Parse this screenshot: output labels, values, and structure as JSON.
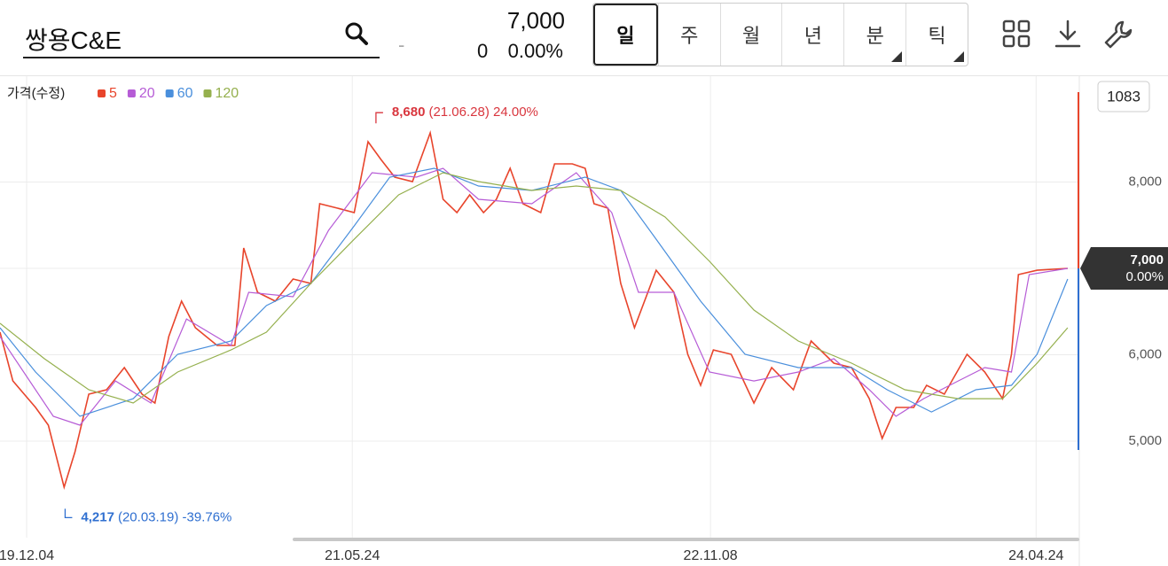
{
  "header": {
    "search": "쌍용C&E",
    "dash": "-",
    "price": "7,000",
    "change": "0",
    "change_rate": "0.00%",
    "tabs": [
      "일",
      "주",
      "월",
      "년",
      "분",
      "틱"
    ]
  },
  "chart_data": {
    "type": "line",
    "legend_title": "가격(수정)",
    "candle_count": "1083",
    "series": [
      {
        "name": "5",
        "color": "#e8452c",
        "x": [
          0,
          13,
          36,
          49,
          65,
          76,
          90,
          108,
          126,
          144,
          157,
          171,
          184,
          198,
          220,
          238,
          247,
          261,
          279,
          297,
          315,
          324,
          342,
          359,
          373,
          386,
          400,
          418,
          436,
          449,
          463,
          476,
          490,
          503,
          517,
          530,
          548,
          562,
          580,
          593,
          602,
          616,
          629,
          643,
          665,
          683,
          697,
          710,
          723,
          741,
          764,
          782,
          804,
          822,
          845,
          863,
          881,
          894,
          908,
          926,
          939,
          957,
          980,
          998,
          1016,
          1025,
          1032,
          1051,
          1082
        ],
        "values": [
          6262,
          5698,
          5390,
          5185,
          4467,
          4877,
          5544,
          5595,
          5851,
          5544,
          5441,
          6210,
          6621,
          6313,
          6108,
          6108,
          7236,
          6723,
          6621,
          6877,
          6826,
          7749,
          7697,
          7646,
          8467,
          8262,
          8056,
          8005,
          8569,
          7800,
          7646,
          7851,
          7646,
          7800,
          8159,
          7749,
          7646,
          8210,
          8210,
          8159,
          7749,
          7697,
          6826,
          6313,
          6979,
          6723,
          6005,
          5646,
          6056,
          6005,
          5441,
          5851,
          5595,
          6159,
          5903,
          5851,
          5492,
          5031,
          5390,
          5390,
          5646,
          5544,
          6005,
          5800,
          5492,
          6005,
          6928,
          6979,
          7000
        ]
      },
      {
        "name": "20",
        "color": "#b65cd6",
        "x": [
          0,
          54,
          81,
          117,
          153,
          189,
          234,
          252,
          297,
          333,
          377,
          422,
          449,
          485,
          539,
          584,
          620,
          647,
          683,
          719,
          764,
          809,
          845,
          881,
          908,
          936,
          971,
          998,
          1025,
          1043,
          1082
        ],
        "values": [
          6210,
          5287,
          5185,
          5697,
          5441,
          6415,
          6108,
          6723,
          6672,
          7441,
          8108,
          8056,
          8159,
          7800,
          7749,
          8108,
          7646,
          6723,
          6723,
          5800,
          5697,
          5800,
          5954,
          5595,
          5287,
          5492,
          5697,
          5851,
          5800,
          6928,
          7000
        ]
      },
      {
        "name": "60",
        "color": "#4a8fdc",
        "x": [
          0,
          36,
          81,
          135,
          180,
          234,
          270,
          315,
          359,
          395,
          440,
          485,
          539,
          593,
          629,
          665,
          710,
          755,
          809,
          863,
          899,
          944,
          989,
          1025,
          1051,
          1082
        ],
        "values": [
          6313,
          5800,
          5287,
          5492,
          6005,
          6159,
          6569,
          6826,
          7492,
          8056,
          8159,
          7954,
          7903,
          8056,
          7903,
          7338,
          6621,
          6005,
          5851,
          5851,
          5595,
          5338,
          5595,
          5646,
          6005,
          6877
        ]
      },
      {
        "name": "120",
        "color": "#95b04e",
        "x": [
          0,
          45,
          90,
          135,
          180,
          234,
          270,
          315,
          359,
          404,
          449,
          485,
          539,
          584,
          629,
          674,
          719,
          764,
          809,
          863,
          917,
          971,
          1016,
          1051,
          1082
        ],
        "values": [
          6364,
          5954,
          5595,
          5441,
          5800,
          6056,
          6262,
          6826,
          7338,
          7851,
          8108,
          8005,
          7903,
          7954,
          7903,
          7595,
          7082,
          6518,
          6159,
          5903,
          5595,
          5492,
          5492,
          5903,
          6313
        ]
      }
    ],
    "xlim": [
      0,
      1083
    ],
    "xticks": [
      {
        "value": 27,
        "label": "19.12.04"
      },
      {
        "value": 357,
        "label": "21.05.24"
      },
      {
        "value": 720,
        "label": "22.11.08"
      },
      {
        "value": 1050,
        "label": "24.04.24"
      }
    ],
    "ylim": [
      3903,
      9205
    ],
    "yticks": [
      {
        "value": 5000,
        "label": "5,000"
      },
      {
        "value": 6000,
        "label": "6,000"
      },
      {
        "value": 7000,
        "label": "7,000"
      },
      {
        "value": 8000,
        "label": "8,000"
      }
    ],
    "grid": true,
    "last_price_label": "7,000",
    "last_change_label": "0.00%",
    "annotations": [
      {
        "text": "8,680",
        "detail": "(21.06.28) 24.00%",
        "x": 381,
        "y": 8680,
        "color": "#d9363e"
      },
      {
        "text": "4,217",
        "detail": "(20.03.19) -39.76%",
        "x": 66,
        "y": 4217,
        "color": "#2f6fd0"
      }
    ]
  }
}
